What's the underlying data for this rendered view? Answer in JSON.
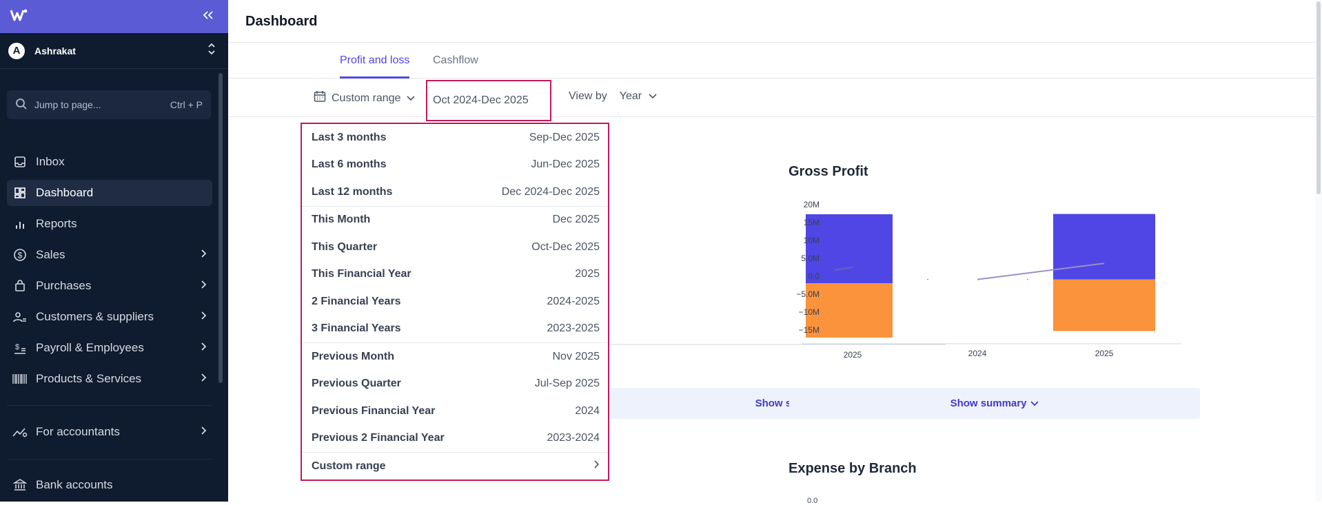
{
  "sidebar": {
    "org_initial": "A",
    "org_name": "Ashrakat",
    "jump_placeholder": "Jump to page...",
    "jump_shortcut": "Ctrl + P",
    "items": [
      {
        "label": "Inbox",
        "icon": "inbox-icon"
      },
      {
        "label": "Dashboard",
        "icon": "dashboard-icon"
      },
      {
        "label": "Reports",
        "icon": "bar-chart-icon"
      },
      {
        "label": "Sales",
        "icon": "dollar-icon"
      },
      {
        "label": "Purchases",
        "icon": "shopping-bag-icon"
      },
      {
        "label": "Customers & suppliers",
        "icon": "users-icon"
      },
      {
        "label": "Payroll & Employees",
        "icon": "payroll-icon"
      },
      {
        "label": "Products & Services",
        "icon": "barcode-icon"
      },
      {
        "label": "For accountants",
        "icon": "trend-icon"
      },
      {
        "label": "Bank accounts",
        "icon": "bank-icon"
      }
    ]
  },
  "header": {
    "title": "Dashboard"
  },
  "tabs": [
    {
      "label": "Profit and loss"
    },
    {
      "label": "Cashflow"
    }
  ],
  "filters": {
    "range_label": "Custom range",
    "range_value": "Oct 2024-Dec 2025",
    "view_by_label": "View by",
    "view_by_value": "Year"
  },
  "dropdown": {
    "groups": [
      [
        {
          "label": "Last 3 months",
          "range": "Sep-Dec 2025"
        },
        {
          "label": "Last 6 months",
          "range": "Jun-Dec 2025"
        },
        {
          "label": "Last 12 months",
          "range": "Dec 2024-Dec 2025"
        }
      ],
      [
        {
          "label": "This Month",
          "range": "Dec 2025"
        },
        {
          "label": "This Quarter",
          "range": "Oct-Dec 2025"
        },
        {
          "label": "This Financial Year",
          "range": "2025"
        },
        {
          "label": "2 Financial Years",
          "range": "2024-2025"
        },
        {
          "label": "3 Financial Years",
          "range": "2023-2025"
        }
      ],
      [
        {
          "label": "Previous Month",
          "range": "Nov 2025"
        },
        {
          "label": "Previous Quarter",
          "range": "Jul-Sep 2025"
        },
        {
          "label": "Previous Financial Year",
          "range": "2024"
        },
        {
          "label": "Previous 2 Financial Year",
          "range": "2023-2024"
        }
      ]
    ],
    "custom_label": "Custom range"
  },
  "charts": {
    "left_x_label": "2025",
    "gross_profit_title": "Gross Profit",
    "expense_title": "Expense by Branch",
    "expense_partial_tick": "0.0",
    "show_summary_label": "Show summary"
  },
  "chart_data": {
    "type": "bar",
    "title": "Gross Profit",
    "categories": [
      "2024",
      "2025"
    ],
    "y_ticks": [
      "20M",
      "15M",
      "10M",
      "5.0M",
      "0.0",
      "−5.0M",
      "−10M",
      "−15M"
    ],
    "ylim": [
      -15000000,
      20000000
    ],
    "series": [
      {
        "values": [
          0,
          17500000
        ],
        "color": "#4f46e5"
      },
      {
        "values": [
          0,
          -13800000
        ],
        "color": "#fb923c"
      }
    ],
    "line": {
      "values": [
        0,
        4300000
      ],
      "color": "#9b8fc9"
    }
  }
}
